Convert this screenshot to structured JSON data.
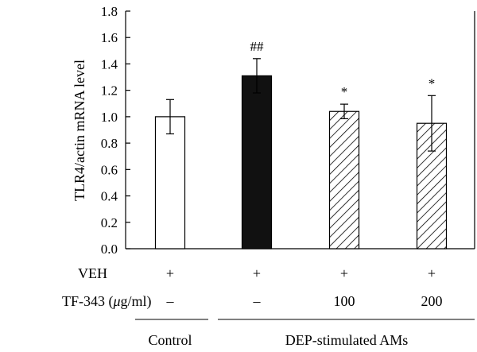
{
  "chart_data": {
    "type": "bar",
    "ylabel": "TLR4/actin mRNA level",
    "ylim": [
      0,
      1.8
    ],
    "yticks": [
      "0.0",
      "0.2",
      "0.4",
      "0.6",
      "0.8",
      "1.0",
      "1.2",
      "1.4",
      "1.6",
      "1.8"
    ],
    "bars": [
      {
        "value": 1.0,
        "error": 0.13,
        "fill": "white",
        "annotation": ""
      },
      {
        "value": 1.31,
        "error": 0.13,
        "fill": "black",
        "annotation": "##"
      },
      {
        "value": 1.04,
        "error": 0.055,
        "fill": "hatched",
        "annotation": "*"
      },
      {
        "value": 0.95,
        "error": 0.21,
        "fill": "hatched",
        "annotation": "*"
      }
    ],
    "rows": [
      {
        "label": "VEH",
        "values": [
          "+",
          "+",
          "+",
          "+"
        ]
      },
      {
        "label": "TF-343 (",
        "label_italic": "μ",
        "label_rest": "g/ml)",
        "values": [
          "–",
          "–",
          "100",
          "200"
        ]
      }
    ],
    "groups": [
      {
        "label": "Control",
        "bars": [
          0
        ]
      },
      {
        "label": "DEP-stimulated AMs",
        "bars": [
          1,
          2,
          3
        ]
      }
    ],
    "grid": false
  }
}
